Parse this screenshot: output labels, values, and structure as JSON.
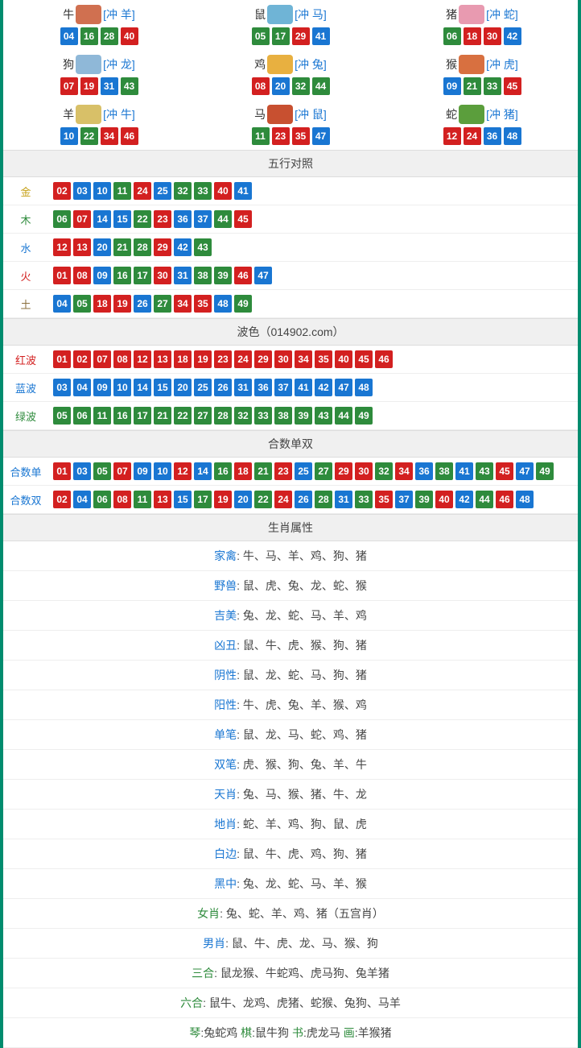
{
  "colors": {
    "red": "#d32020",
    "blue": "#1976d2",
    "green": "#2e8b3c",
    "border": "#008c6e",
    "header_bg": "#f0f0f0"
  },
  "zodiac_icon_colors": {
    "牛": "#d07050",
    "鼠": "#6fb4d6",
    "猪": "#e89ab0",
    "狗": "#8fb8d8",
    "鸡": "#e8b040",
    "猴": "#d87040",
    "羊": "#d8c068",
    "马": "#c85030",
    "蛇": "#5b9e3c"
  },
  "zodiac_grid": [
    {
      "name": "牛",
      "conflict": "[冲 羊]",
      "nums": [
        {
          "n": "04",
          "c": "blue"
        },
        {
          "n": "16",
          "c": "green"
        },
        {
          "n": "28",
          "c": "green"
        },
        {
          "n": "40",
          "c": "red"
        }
      ]
    },
    {
      "name": "鼠",
      "conflict": "[冲 马]",
      "nums": [
        {
          "n": "05",
          "c": "green"
        },
        {
          "n": "17",
          "c": "green"
        },
        {
          "n": "29",
          "c": "red"
        },
        {
          "n": "41",
          "c": "blue"
        }
      ]
    },
    {
      "name": "猪",
      "conflict": "[冲 蛇]",
      "nums": [
        {
          "n": "06",
          "c": "green"
        },
        {
          "n": "18",
          "c": "red"
        },
        {
          "n": "30",
          "c": "red"
        },
        {
          "n": "42",
          "c": "blue"
        }
      ]
    },
    {
      "name": "狗",
      "conflict": "[冲 龙]",
      "nums": [
        {
          "n": "07",
          "c": "red"
        },
        {
          "n": "19",
          "c": "red"
        },
        {
          "n": "31",
          "c": "blue"
        },
        {
          "n": "43",
          "c": "green"
        }
      ]
    },
    {
      "name": "鸡",
      "conflict": "[冲 兔]",
      "nums": [
        {
          "n": "08",
          "c": "red"
        },
        {
          "n": "20",
          "c": "blue"
        },
        {
          "n": "32",
          "c": "green"
        },
        {
          "n": "44",
          "c": "green"
        }
      ]
    },
    {
      "name": "猴",
      "conflict": "[冲 虎]",
      "nums": [
        {
          "n": "09",
          "c": "blue"
        },
        {
          "n": "21",
          "c": "green"
        },
        {
          "n": "33",
          "c": "green"
        },
        {
          "n": "45",
          "c": "red"
        }
      ]
    },
    {
      "name": "羊",
      "conflict": "[冲 牛]",
      "nums": [
        {
          "n": "10",
          "c": "blue"
        },
        {
          "n": "22",
          "c": "green"
        },
        {
          "n": "34",
          "c": "red"
        },
        {
          "n": "46",
          "c": "red"
        }
      ]
    },
    {
      "name": "马",
      "conflict": "[冲 鼠]",
      "nums": [
        {
          "n": "11",
          "c": "green"
        },
        {
          "n": "23",
          "c": "red"
        },
        {
          "n": "35",
          "c": "red"
        },
        {
          "n": "47",
          "c": "blue"
        }
      ]
    },
    {
      "name": "蛇",
      "conflict": "[冲 猪]",
      "nums": [
        {
          "n": "12",
          "c": "red"
        },
        {
          "n": "24",
          "c": "red"
        },
        {
          "n": "36",
          "c": "blue"
        },
        {
          "n": "48",
          "c": "blue"
        }
      ]
    }
  ],
  "wuxing_header": "五行对照",
  "wuxing_rows": [
    {
      "label": "金",
      "class": "gold",
      "nums": [
        {
          "n": "02",
          "c": "red"
        },
        {
          "n": "03",
          "c": "blue"
        },
        {
          "n": "10",
          "c": "blue"
        },
        {
          "n": "11",
          "c": "green"
        },
        {
          "n": "24",
          "c": "red"
        },
        {
          "n": "25",
          "c": "blue"
        },
        {
          "n": "32",
          "c": "green"
        },
        {
          "n": "33",
          "c": "green"
        },
        {
          "n": "40",
          "c": "red"
        },
        {
          "n": "41",
          "c": "blue"
        }
      ]
    },
    {
      "label": "木",
      "class": "wood",
      "nums": [
        {
          "n": "06",
          "c": "green"
        },
        {
          "n": "07",
          "c": "red"
        },
        {
          "n": "14",
          "c": "blue"
        },
        {
          "n": "15",
          "c": "blue"
        },
        {
          "n": "22",
          "c": "green"
        },
        {
          "n": "23",
          "c": "red"
        },
        {
          "n": "36",
          "c": "blue"
        },
        {
          "n": "37",
          "c": "blue"
        },
        {
          "n": "44",
          "c": "green"
        },
        {
          "n": "45",
          "c": "red"
        }
      ]
    },
    {
      "label": "水",
      "class": "water",
      "nums": [
        {
          "n": "12",
          "c": "red"
        },
        {
          "n": "13",
          "c": "red"
        },
        {
          "n": "20",
          "c": "blue"
        },
        {
          "n": "21",
          "c": "green"
        },
        {
          "n": "28",
          "c": "green"
        },
        {
          "n": "29",
          "c": "red"
        },
        {
          "n": "42",
          "c": "blue"
        },
        {
          "n": "43",
          "c": "green"
        }
      ]
    },
    {
      "label": "火",
      "class": "fire",
      "nums": [
        {
          "n": "01",
          "c": "red"
        },
        {
          "n": "08",
          "c": "red"
        },
        {
          "n": "09",
          "c": "blue"
        },
        {
          "n": "16",
          "c": "green"
        },
        {
          "n": "17",
          "c": "green"
        },
        {
          "n": "30",
          "c": "red"
        },
        {
          "n": "31",
          "c": "blue"
        },
        {
          "n": "38",
          "c": "green"
        },
        {
          "n": "39",
          "c": "green"
        },
        {
          "n": "46",
          "c": "red"
        },
        {
          "n": "47",
          "c": "blue"
        }
      ]
    },
    {
      "label": "土",
      "class": "earth",
      "nums": [
        {
          "n": "04",
          "c": "blue"
        },
        {
          "n": "05",
          "c": "green"
        },
        {
          "n": "18",
          "c": "red"
        },
        {
          "n": "19",
          "c": "red"
        },
        {
          "n": "26",
          "c": "blue"
        },
        {
          "n": "27",
          "c": "green"
        },
        {
          "n": "34",
          "c": "red"
        },
        {
          "n": "35",
          "c": "red"
        },
        {
          "n": "48",
          "c": "blue"
        },
        {
          "n": "49",
          "c": "green"
        }
      ]
    }
  ],
  "bose_header": "波色（014902.com）",
  "bose_rows": [
    {
      "label": "红波",
      "class": "redtxt",
      "nums": [
        {
          "n": "01",
          "c": "red"
        },
        {
          "n": "02",
          "c": "red"
        },
        {
          "n": "07",
          "c": "red"
        },
        {
          "n": "08",
          "c": "red"
        },
        {
          "n": "12",
          "c": "red"
        },
        {
          "n": "13",
          "c": "red"
        },
        {
          "n": "18",
          "c": "red"
        },
        {
          "n": "19",
          "c": "red"
        },
        {
          "n": "23",
          "c": "red"
        },
        {
          "n": "24",
          "c": "red"
        },
        {
          "n": "29",
          "c": "red"
        },
        {
          "n": "30",
          "c": "red"
        },
        {
          "n": "34",
          "c": "red"
        },
        {
          "n": "35",
          "c": "red"
        },
        {
          "n": "40",
          "c": "red"
        },
        {
          "n": "45",
          "c": "red"
        },
        {
          "n": "46",
          "c": "red"
        }
      ]
    },
    {
      "label": "蓝波",
      "class": "bluetxt",
      "nums": [
        {
          "n": "03",
          "c": "blue"
        },
        {
          "n": "04",
          "c": "blue"
        },
        {
          "n": "09",
          "c": "blue"
        },
        {
          "n": "10",
          "c": "blue"
        },
        {
          "n": "14",
          "c": "blue"
        },
        {
          "n": "15",
          "c": "blue"
        },
        {
          "n": "20",
          "c": "blue"
        },
        {
          "n": "25",
          "c": "blue"
        },
        {
          "n": "26",
          "c": "blue"
        },
        {
          "n": "31",
          "c": "blue"
        },
        {
          "n": "36",
          "c": "blue"
        },
        {
          "n": "37",
          "c": "blue"
        },
        {
          "n": "41",
          "c": "blue"
        },
        {
          "n": "42",
          "c": "blue"
        },
        {
          "n": "47",
          "c": "blue"
        },
        {
          "n": "48",
          "c": "blue"
        }
      ]
    },
    {
      "label": "绿波",
      "class": "greentxt",
      "nums": [
        {
          "n": "05",
          "c": "green"
        },
        {
          "n": "06",
          "c": "green"
        },
        {
          "n": "11",
          "c": "green"
        },
        {
          "n": "16",
          "c": "green"
        },
        {
          "n": "17",
          "c": "green"
        },
        {
          "n": "21",
          "c": "green"
        },
        {
          "n": "22",
          "c": "green"
        },
        {
          "n": "27",
          "c": "green"
        },
        {
          "n": "28",
          "c": "green"
        },
        {
          "n": "32",
          "c": "green"
        },
        {
          "n": "33",
          "c": "green"
        },
        {
          "n": "38",
          "c": "green"
        },
        {
          "n": "39",
          "c": "green"
        },
        {
          "n": "43",
          "c": "green"
        },
        {
          "n": "44",
          "c": "green"
        },
        {
          "n": "49",
          "c": "green"
        }
      ]
    }
  ],
  "heshu_header": "合数单双",
  "heshu_rows": [
    {
      "label": "合数单",
      "class": "bluetxt",
      "nums": [
        {
          "n": "01",
          "c": "red"
        },
        {
          "n": "03",
          "c": "blue"
        },
        {
          "n": "05",
          "c": "green"
        },
        {
          "n": "07",
          "c": "red"
        },
        {
          "n": "09",
          "c": "blue"
        },
        {
          "n": "10",
          "c": "blue"
        },
        {
          "n": "12",
          "c": "red"
        },
        {
          "n": "14",
          "c": "blue"
        },
        {
          "n": "16",
          "c": "green"
        },
        {
          "n": "18",
          "c": "red"
        },
        {
          "n": "21",
          "c": "green"
        },
        {
          "n": "23",
          "c": "red"
        },
        {
          "n": "25",
          "c": "blue"
        },
        {
          "n": "27",
          "c": "green"
        },
        {
          "n": "29",
          "c": "red"
        },
        {
          "n": "30",
          "c": "red"
        },
        {
          "n": "32",
          "c": "green"
        },
        {
          "n": "34",
          "c": "red"
        },
        {
          "n": "36",
          "c": "blue"
        },
        {
          "n": "38",
          "c": "green"
        },
        {
          "n": "41",
          "c": "blue"
        },
        {
          "n": "43",
          "c": "green"
        },
        {
          "n": "45",
          "c": "red"
        },
        {
          "n": "47",
          "c": "blue"
        },
        {
          "n": "49",
          "c": "green"
        }
      ]
    },
    {
      "label": "合数双",
      "class": "bluetxt",
      "nums": [
        {
          "n": "02",
          "c": "red"
        },
        {
          "n": "04",
          "c": "blue"
        },
        {
          "n": "06",
          "c": "green"
        },
        {
          "n": "08",
          "c": "red"
        },
        {
          "n": "11",
          "c": "green"
        },
        {
          "n": "13",
          "c": "red"
        },
        {
          "n": "15",
          "c": "blue"
        },
        {
          "n": "17",
          "c": "green"
        },
        {
          "n": "19",
          "c": "red"
        },
        {
          "n": "20",
          "c": "blue"
        },
        {
          "n": "22",
          "c": "green"
        },
        {
          "n": "24",
          "c": "red"
        },
        {
          "n": "26",
          "c": "blue"
        },
        {
          "n": "28",
          "c": "green"
        },
        {
          "n": "31",
          "c": "blue"
        },
        {
          "n": "33",
          "c": "green"
        },
        {
          "n": "35",
          "c": "red"
        },
        {
          "n": "37",
          "c": "blue"
        },
        {
          "n": "39",
          "c": "green"
        },
        {
          "n": "40",
          "c": "red"
        },
        {
          "n": "42",
          "c": "blue"
        },
        {
          "n": "44",
          "c": "green"
        },
        {
          "n": "46",
          "c": "red"
        },
        {
          "n": "48",
          "c": "blue"
        }
      ]
    }
  ],
  "shuxing_header": "生肖属性",
  "attr_rows": [
    {
      "label": "家禽",
      "class": "",
      "text": "牛、马、羊、鸡、狗、猪"
    },
    {
      "label": "野兽",
      "class": "",
      "text": "鼠、虎、兔、龙、蛇、猴"
    },
    {
      "label": "吉美",
      "class": "",
      "text": "兔、龙、蛇、马、羊、鸡"
    },
    {
      "label": "凶丑",
      "class": "",
      "text": "鼠、牛、虎、猴、狗、猪"
    },
    {
      "label": "阴性",
      "class": "",
      "text": "鼠、龙、蛇、马、狗、猪"
    },
    {
      "label": "阳性",
      "class": "",
      "text": "牛、虎、兔、羊、猴、鸡"
    },
    {
      "label": "单笔",
      "class": "",
      "text": "鼠、龙、马、蛇、鸡、猪"
    },
    {
      "label": "双笔",
      "class": "",
      "text": "虎、猴、狗、兔、羊、牛"
    },
    {
      "label": "天肖",
      "class": "",
      "text": "兔、马、猴、猪、牛、龙"
    },
    {
      "label": "地肖",
      "class": "",
      "text": "蛇、羊、鸡、狗、鼠、虎"
    },
    {
      "label": "白边",
      "class": "",
      "text": "鼠、牛、虎、鸡、狗、猪"
    },
    {
      "label": "黑中",
      "class": "",
      "text": "兔、龙、蛇、马、羊、猴"
    },
    {
      "label": "女肖",
      "class": "green",
      "text": "兔、蛇、羊、鸡、猪（五宫肖）"
    },
    {
      "label": "男肖",
      "class": "",
      "text": "鼠、牛、虎、龙、马、猴、狗"
    },
    {
      "label": "三合",
      "class": "green",
      "text": "鼠龙猴、牛蛇鸡、虎马狗、兔羊猪"
    },
    {
      "label": "六合",
      "class": "green",
      "text": "鼠牛、龙鸡、虎猪、蛇猴、兔狗、马羊"
    }
  ],
  "footer_parts": [
    {
      "label": "琴",
      "class": "green",
      "text": ":兔蛇鸡   "
    },
    {
      "label": "棋",
      "class": "green",
      "text": ":鼠牛狗   "
    },
    {
      "label": "书",
      "class": "green",
      "text": ":虎龙马   "
    },
    {
      "label": "画",
      "class": "green",
      "text": ":羊猴猪"
    }
  ]
}
